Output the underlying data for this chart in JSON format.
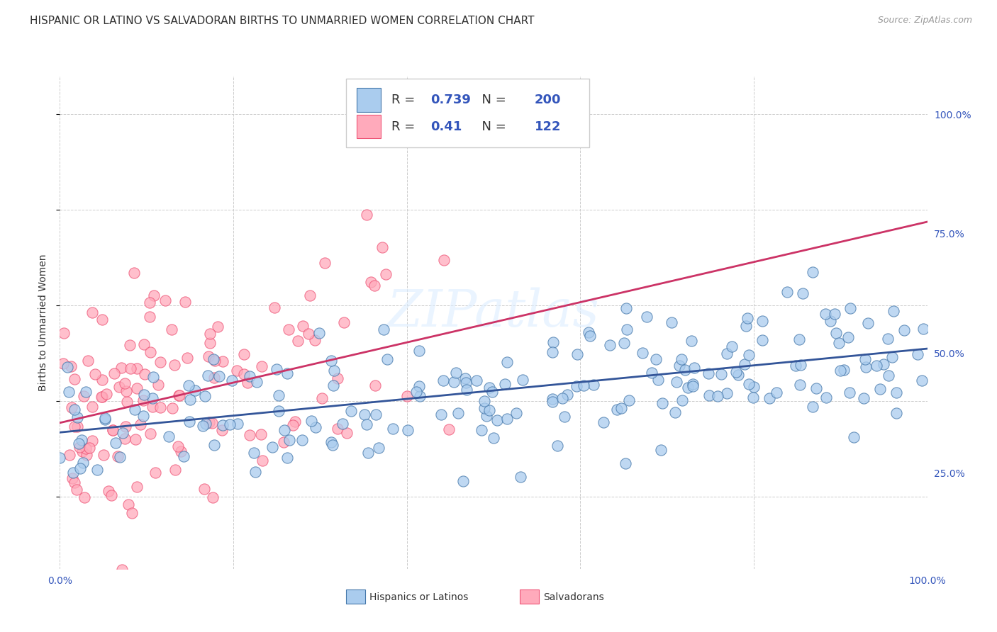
{
  "title": "HISPANIC OR LATINO VS SALVADORAN BIRTHS TO UNMARRIED WOMEN CORRELATION CHART",
  "source": "Source: ZipAtlas.com",
  "ylabel": "Births to Unmarried Women",
  "ytick_labels": [
    "25.0%",
    "50.0%",
    "75.0%",
    "100.0%"
  ],
  "ytick_positions": [
    0.25,
    0.5,
    0.75,
    1.0
  ],
  "xlim": [
    0.0,
    1.0
  ],
  "ylim": [
    0.05,
    1.08
  ],
  "blue_R": 0.739,
  "blue_N": 200,
  "pink_R": 0.41,
  "pink_N": 122,
  "blue_color": "#AACCEE",
  "pink_color": "#FFAABB",
  "blue_edge_color": "#4477AA",
  "pink_edge_color": "#EE5577",
  "blue_line_color": "#335599",
  "pink_line_color": "#CC3366",
  "legend_text_color": "#3355BB",
  "legend_label_blue": "Hispanics or Latinos",
  "legend_label_pink": "Salvadorans",
  "watermark": "ZIPatlas",
  "background_color": "#FFFFFF",
  "title_fontsize": 11,
  "axis_label_fontsize": 10,
  "tick_fontsize": 10,
  "blue_line_intercept": 0.335,
  "blue_line_slope": 0.175,
  "pink_line_intercept": 0.355,
  "pink_line_slope": 0.42
}
